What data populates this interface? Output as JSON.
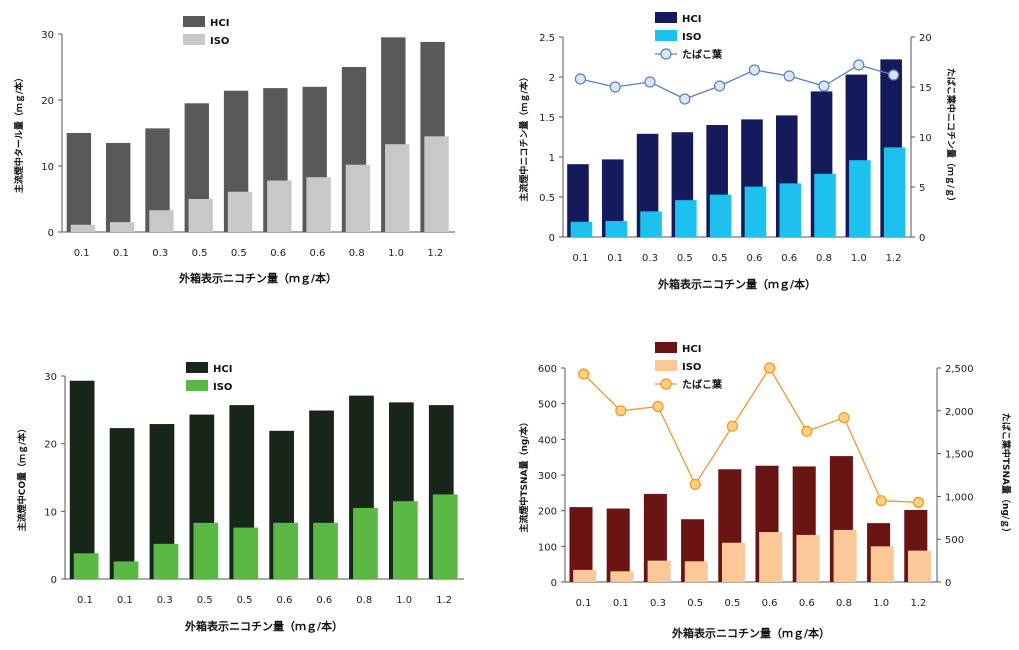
{
  "chart_data": [
    {
      "type": "bar",
      "categories": [
        "0.1",
        "0.1",
        "0.3",
        "0.5",
        "0.5",
        "0.6",
        "0.6",
        "0.8",
        "1.0",
        "1.2"
      ],
      "series": [
        {
          "name": "HCI",
          "color": "#595959",
          "values": [
            15.0,
            13.5,
            15.7,
            19.5,
            21.4,
            21.8,
            22.0,
            25.0,
            29.5,
            28.8
          ]
        },
        {
          "name": "ISO",
          "color": "#c8c8c8",
          "values": [
            1.1,
            1.5,
            3.3,
            5.0,
            6.1,
            7.8,
            8.3,
            10.2,
            13.3,
            14.5
          ]
        }
      ],
      "xlabel": "外箱表示ニコチン量（ｍｇ/本）",
      "ylabel": "主流煙中タール量（ｍｇ/本）",
      "ylim": [
        0,
        30
      ],
      "yticks": [
        "0",
        "10",
        "20",
        "30"
      ],
      "grid": false,
      "legend": "top-center"
    },
    {
      "type": "bar",
      "categories": [
        "0.1",
        "0.1",
        "0.3",
        "0.5",
        "0.5",
        "0.6",
        "0.6",
        "0.8",
        "1.0",
        "1.2"
      ],
      "series": [
        {
          "name": "HCI",
          "color": "#141a5c",
          "values": [
            0.91,
            0.97,
            1.29,
            1.31,
            1.4,
            1.47,
            1.52,
            1.82,
            2.03,
            2.22
          ]
        },
        {
          "name": "ISO",
          "color": "#1ec0ee",
          "values": [
            0.19,
            0.2,
            0.32,
            0.46,
            0.53,
            0.63,
            0.67,
            0.79,
            0.96,
            1.12
          ]
        }
      ],
      "secondary_series": {
        "name": "たばこ葉",
        "type": "line",
        "color": "#5b82b8",
        "values": [
          15.8,
          15.0,
          15.5,
          13.8,
          15.1,
          16.7,
          16.1,
          15.1,
          17.2,
          16.2
        ]
      },
      "xlabel": "外箱表示ニコチン量（ｍｇ/本）",
      "ylabel": "主流煙中ニコチン量（ｍｇ/本）",
      "y2label": "たばこ葉中ニコチン量（ｍｇ/ｇ）",
      "ylim": [
        0,
        2.5
      ],
      "y2lim": [
        0,
        20
      ],
      "yticks": [
        "0",
        "0.5",
        "1",
        "1.5",
        "2",
        "2.5"
      ],
      "y2ticks": [
        "0",
        "5",
        "10",
        "15",
        "20"
      ],
      "grid": false,
      "legend": "top-left"
    },
    {
      "type": "bar",
      "categories": [
        "0.1",
        "0.1",
        "0.3",
        "0.5",
        "0.5",
        "0.6",
        "0.6",
        "0.8",
        "1.0",
        "1.2"
      ],
      "series": [
        {
          "name": "HCI",
          "color": "#172619",
          "values": [
            29.3,
            22.3,
            22.9,
            24.3,
            25.7,
            21.9,
            24.9,
            27.1,
            26.1,
            25.7
          ]
        },
        {
          "name": "ISO",
          "color": "#5ab845",
          "values": [
            3.8,
            2.6,
            5.2,
            8.3,
            7.6,
            8.3,
            8.3,
            10.5,
            11.5,
            12.5
          ]
        }
      ],
      "xlabel": "外箱表示ニコチン量（ｍｇ/本）",
      "ylabel": "主流煙中CO量（ｍｇ/本）",
      "ylim": [
        0,
        30
      ],
      "yticks": [
        "0",
        "10",
        "20",
        "30"
      ],
      "grid": false,
      "legend": "top-center"
    },
    {
      "type": "bar",
      "categories": [
        "0.1",
        "0.1",
        "0.3",
        "0.5",
        "0.5",
        "0.6",
        "0.6",
        "0.8",
        "1.0",
        "1.2"
      ],
      "series": [
        {
          "name": "HCI",
          "color": "#6b1414",
          "values": [
            210,
            206,
            247,
            176,
            316,
            326,
            324,
            353,
            165,
            202
          ]
        },
        {
          "name": "ISO",
          "color": "#fbc897",
          "values": [
            34,
            30,
            60,
            58,
            110,
            140,
            132,
            146,
            100,
            88
          ]
        }
      ],
      "secondary_series": {
        "name": "たばこ葉",
        "type": "line",
        "color": "#f0962d",
        "values": [
          2430,
          2000,
          2050,
          1140,
          1820,
          2500,
          1760,
          1920,
          950,
          930
        ]
      },
      "xlabel": "外箱表示ニコチン量（ｍｇ/本）",
      "ylabel": "主流煙中TSNA量（ng/本）",
      "y2label": "たばこ葉中TSNA量（ng/ｇ）",
      "ylim": [
        0,
        600
      ],
      "y2lim": [
        0,
        2500
      ],
      "yticks": [
        "0",
        "100",
        "200",
        "300",
        "400",
        "500",
        "600"
      ],
      "y2ticks": [
        "0",
        "500",
        "1,000",
        "1,500",
        "2,000",
        "2,500"
      ],
      "grid": false,
      "legend": "top-left"
    }
  ]
}
